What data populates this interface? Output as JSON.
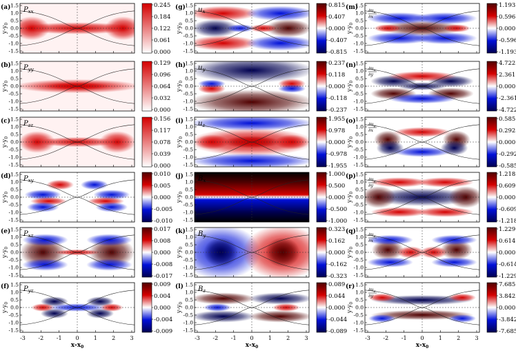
{
  "figure": {
    "columns": [
      {
        "panels": [
          {
            "letter": "(a)",
            "label": "P",
            "sub": "xx",
            "mode": "pos",
            "cb": [
              "0.245",
              "0.184",
              "0.122",
              "0.061",
              "0.000"
            ]
          },
          {
            "letter": "(b)",
            "label": "P",
            "sub": "yy",
            "mode": "pos",
            "cb": [
              "0.129",
              "0.096",
              "0.064",
              "0.032",
              "0.000"
            ]
          },
          {
            "letter": "(c)",
            "label": "P",
            "sub": "zz",
            "mode": "pos",
            "cb": [
              "0.156",
              "0.117",
              "0.078",
              "0.039",
              "0.000"
            ]
          },
          {
            "letter": "(d)",
            "label": "P",
            "sub": "xy",
            "mode": "div",
            "cb": [
              "0.010",
              "0.005",
              "0.000",
              "-0.005",
              "-0.010"
            ]
          },
          {
            "letter": "(e)",
            "label": "P",
            "sub": "xz",
            "mode": "div",
            "cb": [
              "0.017",
              "0.008",
              "0.000",
              "-0.008",
              "-0.017"
            ]
          },
          {
            "letter": "(f)",
            "label": "P",
            "sub": "yz",
            "mode": "div",
            "cb": [
              "0.009",
              "0.004",
              "0.000",
              "-0.004",
              "-0.009"
            ]
          }
        ]
      },
      {
        "panels": [
          {
            "letter": "(g)",
            "label": "u",
            "sub": "x",
            "mode": "div",
            "cb": [
              "0.815",
              "0.407",
              "0.000",
              "-0.407",
              "-0.815"
            ]
          },
          {
            "letter": "(h)",
            "label": "u",
            "sub": "y",
            "mode": "div",
            "cb": [
              "0.237",
              "0.118",
              "0.000",
              "-0.118",
              "-0.237"
            ]
          },
          {
            "letter": "(i)",
            "label": "u",
            "sub": "z",
            "mode": "div",
            "cb": [
              "1.955",
              "0.978",
              "0.000",
              "-0.978",
              "-1.955"
            ]
          },
          {
            "letter": "(j)",
            "label": "B",
            "sub": "x",
            "mode": "div",
            "cb": [
              "1.000",
              "0.500",
              "0.000",
              "-0.500",
              "-1.000"
            ]
          },
          {
            "letter": "(k)",
            "label": "B",
            "sub": "y",
            "mode": "div",
            "cb": [
              "0.323",
              "0.162",
              "0.000",
              "-0.162",
              "-0.323"
            ]
          },
          {
            "letter": "(l)",
            "label": "B",
            "sub": "z",
            "mode": "div",
            "cb": [
              "0.089",
              "0.044",
              "0.000",
              "-0.044",
              "-0.089"
            ]
          }
        ]
      },
      {
        "panels": [
          {
            "letter": "(m)",
            "label": "∂u",
            "sub": "x",
            "den": "∂x",
            "mode": "div",
            "cb": [
              "1.193",
              "0.596",
              "0.000",
              "-0.596",
              "-1.193"
            ]
          },
          {
            "letter": "(n)",
            "label": "∂u",
            "sub": "x",
            "den": "∂y",
            "mode": "div",
            "cb": [
              "4.722",
              "2.361",
              "0.000",
              "-2.361",
              "-4.722"
            ]
          },
          {
            "letter": "(o)",
            "label": "∂u",
            "sub": "y",
            "den": "∂x",
            "mode": "div",
            "cb": [
              "0.585",
              "0.292",
              "0.000",
              "-0.292",
              "-0.585"
            ]
          },
          {
            "letter": "(p)",
            "label": "∂u",
            "sub": "y",
            "den": "∂y",
            "mode": "div",
            "cb": [
              "1.218",
              "0.609",
              "0.000",
              "-0.609",
              "-1.218"
            ]
          },
          {
            "letter": "(q)",
            "label": "∂u",
            "sub": "z",
            "den": "∂x",
            "mode": "div",
            "cb": [
              "1.229",
              "0.614",
              "0.000",
              "-0.614",
              "-1.229"
            ]
          },
          {
            "letter": "(r)",
            "label": "∂u",
            "sub": "z",
            "den": "∂y",
            "mode": "div",
            "cb": [
              "7.685",
              "3.842",
              "0.000",
              "-3.842",
              "-7.685"
            ]
          }
        ]
      }
    ],
    "y_axis_label": "y-y",
    "y_axis_sub": "0",
    "x_axis_label": "x-x",
    "x_axis_sub": "0",
    "y_ticks": [
      "1.5",
      "1.0",
      "0.5",
      "0.0",
      "-0.5",
      "-1.0",
      "-1.5"
    ],
    "x_ticks": [
      "-3",
      "-2",
      "-1",
      "0",
      "1",
      "2",
      "3"
    ],
    "colors": {
      "red": "#d40000",
      "white": "#ffffff",
      "blue": "#0010d8",
      "dark_blue": "#000050",
      "dark_red": "#500000",
      "black": "#000000"
    }
  }
}
